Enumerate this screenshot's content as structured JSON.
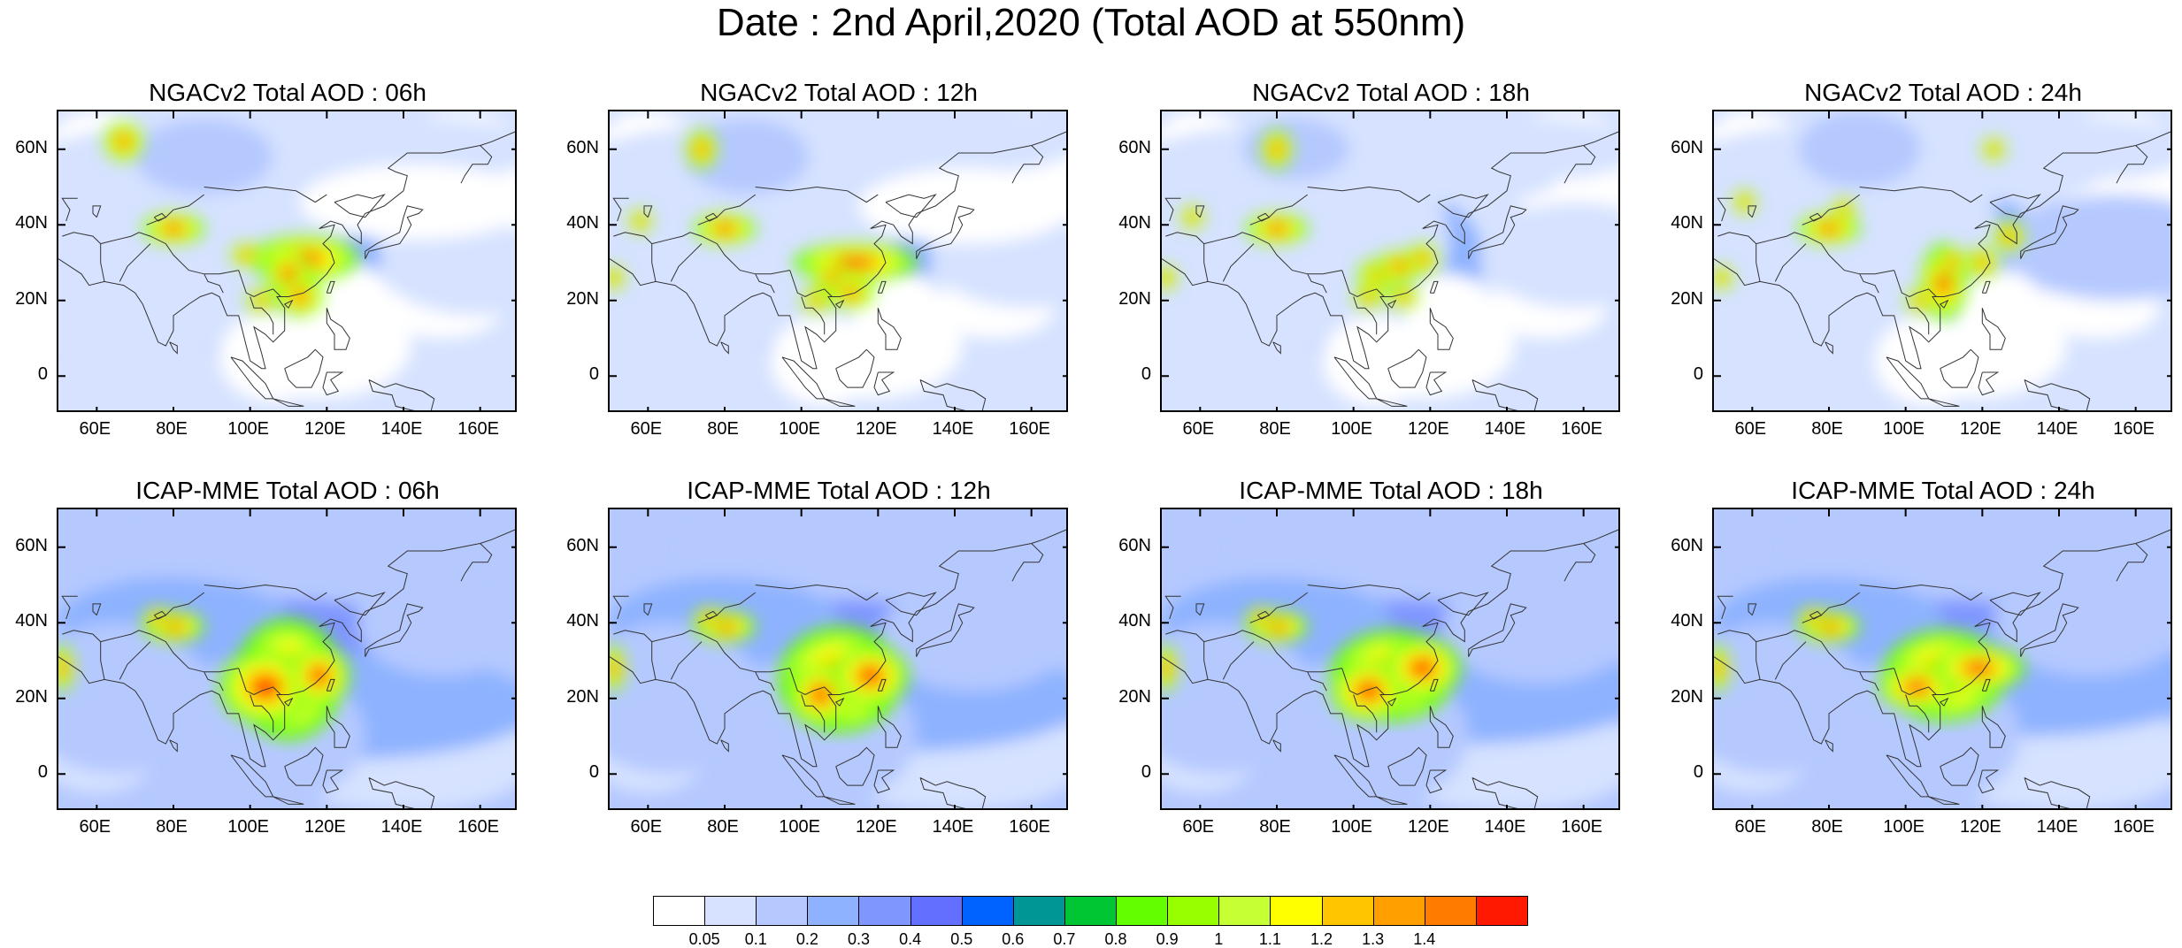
{
  "figure": {
    "title": "Date : 2nd April,2020 (Total AOD at 550nm)"
  },
  "panels": [
    {
      "title": "NGACv2 Total AOD : 06h",
      "model": "NGACv2",
      "lead": "06h"
    },
    {
      "title": "NGACv2 Total AOD : 12h",
      "model": "NGACv2",
      "lead": "12h"
    },
    {
      "title": "NGACv2 Total AOD : 18h",
      "model": "NGACv2",
      "lead": "18h"
    },
    {
      "title": "NGACv2 Total AOD : 24h",
      "model": "NGACv2",
      "lead": "24h"
    },
    {
      "title": "ICAP-MME Total AOD : 06h",
      "model": "ICAP-MME",
      "lead": "06h"
    },
    {
      "title": "ICAP-MME Total AOD : 12h",
      "model": "ICAP-MME",
      "lead": "12h"
    },
    {
      "title": "ICAP-MME Total AOD : 18h",
      "model": "ICAP-MME",
      "lead": "18h"
    },
    {
      "title": "ICAP-MME Total AOD : 24h",
      "model": "ICAP-MME",
      "lead": "24h"
    }
  ],
  "axes": {
    "lon_range": [
      50,
      170
    ],
    "lat_range": [
      -10,
      70
    ],
    "lon_ticks": [
      60,
      80,
      100,
      120,
      140,
      160
    ],
    "lon_labels": [
      "60E",
      "80E",
      "100E",
      "120E",
      "140E",
      "160E"
    ],
    "lat_ticks": [
      60,
      40,
      20,
      0
    ],
    "lat_labels": [
      "60N",
      "40N",
      "20N",
      "0"
    ]
  },
  "colorbar": {
    "colors": [
      "#ffffff",
      "#d6e2ff",
      "#b5c9ff",
      "#8eb2ff",
      "#7f96ff",
      "#6370ff",
      "#0063ff",
      "#009696",
      "#00c633",
      "#63ff00",
      "#96ff00",
      "#c6ff33",
      "#ffff00",
      "#ffc600",
      "#ffa000",
      "#ff7c00",
      "#ff1900"
    ],
    "labels": [
      "0.05",
      "0.1",
      "0.2",
      "0.3",
      "0.4",
      "0.5",
      "0.6",
      "0.7",
      "0.8",
      "0.9",
      "1",
      "1.1",
      "1.2",
      "1.3",
      "1.4"
    ]
  }
}
